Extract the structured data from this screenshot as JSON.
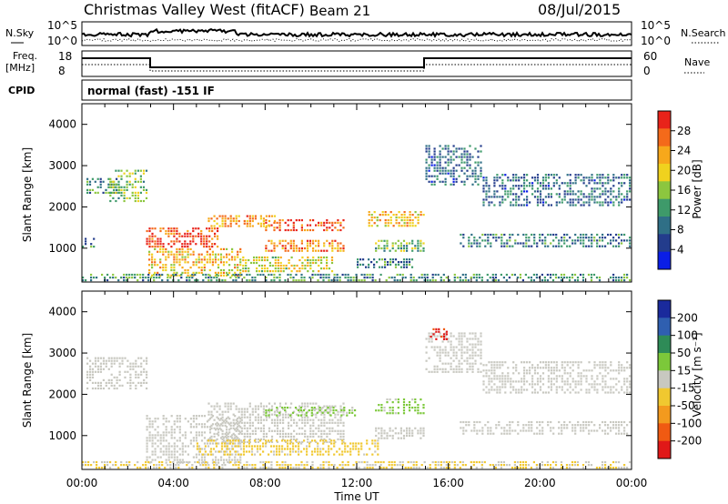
{
  "header": {
    "title": "Christmas Valley West (fitACF)",
    "beam": "Beam 21",
    "date": "08/Jul/2015"
  },
  "status_panels": {
    "nsky_label": "N.Sky",
    "nsky_ticks": [
      "10^5",
      "10^0"
    ],
    "nsearch_label": "N.Search",
    "nsearch_ticks": [
      "10^5",
      "10^0"
    ],
    "freq_label_1": "Freq.",
    "freq_label_2": "[MHz]",
    "freq_ticks": [
      "18",
      "8"
    ],
    "nave_label": "Nave",
    "nave_ticks": [
      "60",
      "0"
    ],
    "cpid_label": "CPID",
    "cpid_value": "normal (fast) -151 IF"
  },
  "colorbars": {
    "power": {
      "label": "Power [dB]",
      "ticks": [
        "28",
        "24",
        "20",
        "16",
        "12",
        "8",
        "4"
      ],
      "colors": [
        "#0a1ee6",
        "#233c8c",
        "#2f6f86",
        "#3e9a6a",
        "#8cc63f",
        "#f0d21e",
        "#f7a81b",
        "#f46a1a",
        "#e8231a"
      ]
    },
    "velocity": {
      "label": "Velocity [m s⁻¹]",
      "ticks": [
        "200",
        "100",
        "50",
        "15",
        "-15",
        "-50",
        "-100",
        "-200"
      ],
      "colors": [
        "#1a2a9c",
        "#2f5fb0",
        "#2e8b57",
        "#7cc83a",
        "#c8c8c0",
        "#f0c830",
        "#f39a1e",
        "#f05a12",
        "#e01818"
      ]
    }
  },
  "x_axis": {
    "label": "Time UT",
    "ticks": [
      "00:00",
      "04:00",
      "08:00",
      "12:00",
      "16:00",
      "20:00",
      "00:00"
    ]
  },
  "chart_data": [
    {
      "type": "heatmap",
      "title": "Power",
      "ylabel": "Slant Range [km]",
      "xlabel": "",
      "xlim_hours": [
        0,
        24
      ],
      "ylim": [
        180,
        4500
      ],
      "yticks": [
        1000,
        2000,
        3000,
        4000
      ],
      "colorbar_label": "Power [dB]",
      "colorbar_range": [
        0,
        30
      ],
      "grid": false,
      "echo_regions": [
        {
          "t0": 0.2,
          "t1": 1.7,
          "r0": 2300,
          "r1": 2700,
          "value": 10
        },
        {
          "t0": 1.2,
          "t1": 2.9,
          "r0": 2100,
          "r1": 2900,
          "value": 14
        },
        {
          "t0": 0.0,
          "t1": 0.6,
          "r0": 1000,
          "r1": 1250,
          "value": 9
        },
        {
          "t0": 2.8,
          "t1": 6.0,
          "r0": 1000,
          "r1": 1500,
          "value": 27
        },
        {
          "t0": 2.9,
          "t1": 7.0,
          "r0": 300,
          "r1": 1000,
          "value": 20
        },
        {
          "t0": 5.5,
          "t1": 8.5,
          "r0": 1500,
          "r1": 1800,
          "value": 22
        },
        {
          "t0": 8.0,
          "t1": 11.5,
          "r0": 1400,
          "r1": 1700,
          "value": 26
        },
        {
          "t0": 8.0,
          "t1": 11.5,
          "r0": 900,
          "r1": 1200,
          "value": 23
        },
        {
          "t0": 7.0,
          "t1": 11.0,
          "r0": 400,
          "r1": 800,
          "value": 18
        },
        {
          "t0": 12.5,
          "t1": 15.0,
          "r0": 1500,
          "r1": 1900,
          "value": 20
        },
        {
          "t0": 12.8,
          "t1": 15.0,
          "r0": 900,
          "r1": 1200,
          "value": 13
        },
        {
          "t0": 12.0,
          "t1": 14.5,
          "r0": 500,
          "r1": 750,
          "value": 9
        },
        {
          "t0": 15.0,
          "t1": 17.5,
          "r0": 2500,
          "r1": 3500,
          "value": 8
        },
        {
          "t0": 16.5,
          "t1": 24.0,
          "r0": 1000,
          "r1": 1350,
          "value": 9
        },
        {
          "t0": 17.5,
          "t1": 24.0,
          "r0": 2000,
          "r1": 2800,
          "value": 8
        },
        {
          "t0": 0.0,
          "t1": 24.0,
          "r0": 180,
          "r1": 380,
          "value": 11
        }
      ]
    },
    {
      "type": "heatmap",
      "title": "Velocity",
      "ylabel": "Slant Range [km]",
      "xlabel": "Time UT",
      "xlim_hours": [
        0,
        24
      ],
      "ylim": [
        180,
        4500
      ],
      "yticks": [
        1000,
        2000,
        3000,
        4000
      ],
      "colorbar_label": "Velocity [m s⁻¹]",
      "colorbar_range": [
        -250,
        250
      ],
      "grid": false,
      "echo_regions": [
        {
          "t0": 0.2,
          "t1": 2.9,
          "r0": 2100,
          "r1": 2900,
          "value": 0
        },
        {
          "t0": 2.8,
          "t1": 7.0,
          "r0": 300,
          "r1": 1500,
          "value": -5
        },
        {
          "t0": 5.5,
          "t1": 11.5,
          "r0": 800,
          "r1": 1800,
          "value": 0
        },
        {
          "t0": 8.0,
          "t1": 12.0,
          "r0": 1450,
          "r1": 1700,
          "value": 40
        },
        {
          "t0": 12.8,
          "t1": 15.0,
          "r0": 1500,
          "r1": 1900,
          "value": 40
        },
        {
          "t0": 5.0,
          "t1": 13.0,
          "r0": 500,
          "r1": 900,
          "value": -40
        },
        {
          "t0": 12.8,
          "t1": 15.0,
          "r0": 900,
          "r1": 1200,
          "value": 0
        },
        {
          "t0": 15.0,
          "t1": 17.5,
          "r0": 2500,
          "r1": 3500,
          "value": 0
        },
        {
          "t0": 15.2,
          "t1": 16.0,
          "r0": 3300,
          "r1": 3600,
          "value": -200
        },
        {
          "t0": 16.5,
          "t1": 24.0,
          "r0": 1000,
          "r1": 1350,
          "value": 0
        },
        {
          "t0": 17.5,
          "t1": 24.0,
          "r0": 2000,
          "r1": 2800,
          "value": 0
        },
        {
          "t0": 0.0,
          "t1": 24.0,
          "r0": 180,
          "r1": 380,
          "value": -30
        }
      ]
    }
  ]
}
